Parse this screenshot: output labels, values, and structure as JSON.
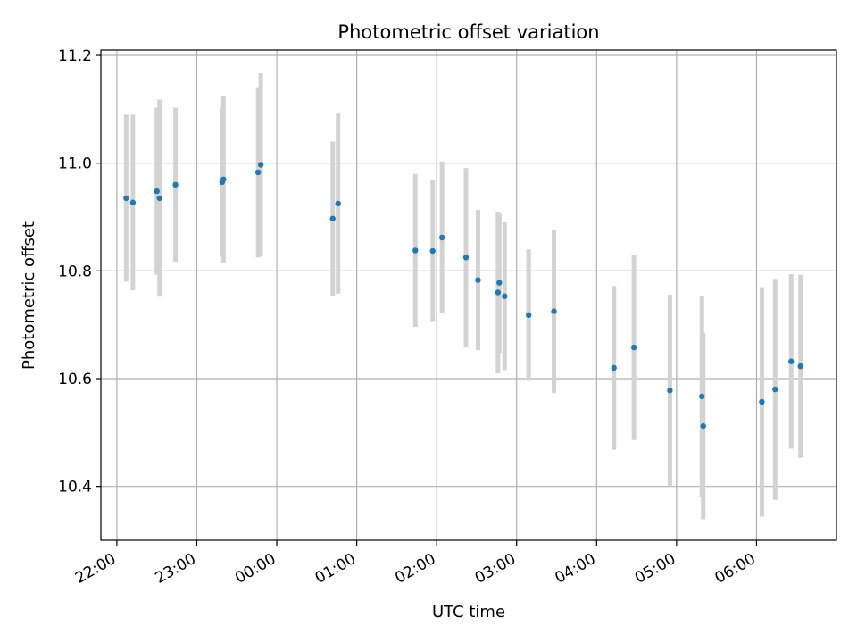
{
  "chart_data": {
    "type": "scatter",
    "title": "Photometric offset variation",
    "xlabel": "UTC time",
    "ylabel": "Photometric offset",
    "x_ticks": [
      "22:00",
      "23:00",
      "00:00",
      "01:00",
      "02:00",
      "03:00",
      "04:00",
      "05:00",
      "06:00"
    ],
    "y_ticks": [
      "10.4",
      "10.6",
      "10.8",
      "11.0",
      "11.2"
    ],
    "xlim": [
      "21:48",
      "07:00"
    ],
    "ylim": [
      10.3,
      11.21
    ],
    "grid": true,
    "colors": {
      "point": "#1f77b4",
      "errorbar": "#d3d3d3",
      "grid": "#b0b0b0"
    },
    "points": [
      {
        "t": "22:07",
        "y": 10.935,
        "err": 0.155
      },
      {
        "t": "22:12",
        "y": 10.927,
        "err": 0.163
      },
      {
        "t": "22:30",
        "y": 10.948,
        "err": 0.155
      },
      {
        "t": "22:32",
        "y": 10.935,
        "err": 0.183
      },
      {
        "t": "22:44",
        "y": 10.96,
        "err": 0.143
      },
      {
        "t": "23:19",
        "y": 10.965,
        "err": 0.138
      },
      {
        "t": "23:20",
        "y": 10.97,
        "err": 0.155
      },
      {
        "t": "23:46",
        "y": 10.983,
        "err": 0.158
      },
      {
        "t": "23:48",
        "y": 10.997,
        "err": 0.17
      },
      {
        "t": "00:42",
        "y": 10.897,
        "err": 0.143
      },
      {
        "t": "00:46",
        "y": 10.925,
        "err": 0.167
      },
      {
        "t": "01:44",
        "y": 10.838,
        "err": 0.142
      },
      {
        "t": "01:57",
        "y": 10.837,
        "err": 0.132
      },
      {
        "t": "02:04",
        "y": 10.862,
        "err": 0.141
      },
      {
        "t": "02:22",
        "y": 10.825,
        "err": 0.166
      },
      {
        "t": "02:31",
        "y": 10.783,
        "err": 0.13
      },
      {
        "t": "02:46",
        "y": 10.76,
        "err": 0.15
      },
      {
        "t": "02:47",
        "y": 10.778,
        "err": 0.13
      },
      {
        "t": "02:51",
        "y": 10.753,
        "err": 0.137
      },
      {
        "t": "03:09",
        "y": 10.718,
        "err": 0.122
      },
      {
        "t": "03:28",
        "y": 10.725,
        "err": 0.152
      },
      {
        "t": "04:13",
        "y": 10.62,
        "err": 0.152
      },
      {
        "t": "04:28",
        "y": 10.658,
        "err": 0.172
      },
      {
        "t": "04:55",
        "y": 10.578,
        "err": 0.178
      },
      {
        "t": "05:19",
        "y": 10.567,
        "err": 0.187
      },
      {
        "t": "05:20",
        "y": 10.512,
        "err": 0.173
      },
      {
        "t": "06:04",
        "y": 10.557,
        "err": 0.213
      },
      {
        "t": "06:14",
        "y": 10.58,
        "err": 0.205
      },
      {
        "t": "06:26",
        "y": 10.632,
        "err": 0.162
      },
      {
        "t": "06:33",
        "y": 10.623,
        "err": 0.17
      }
    ]
  }
}
